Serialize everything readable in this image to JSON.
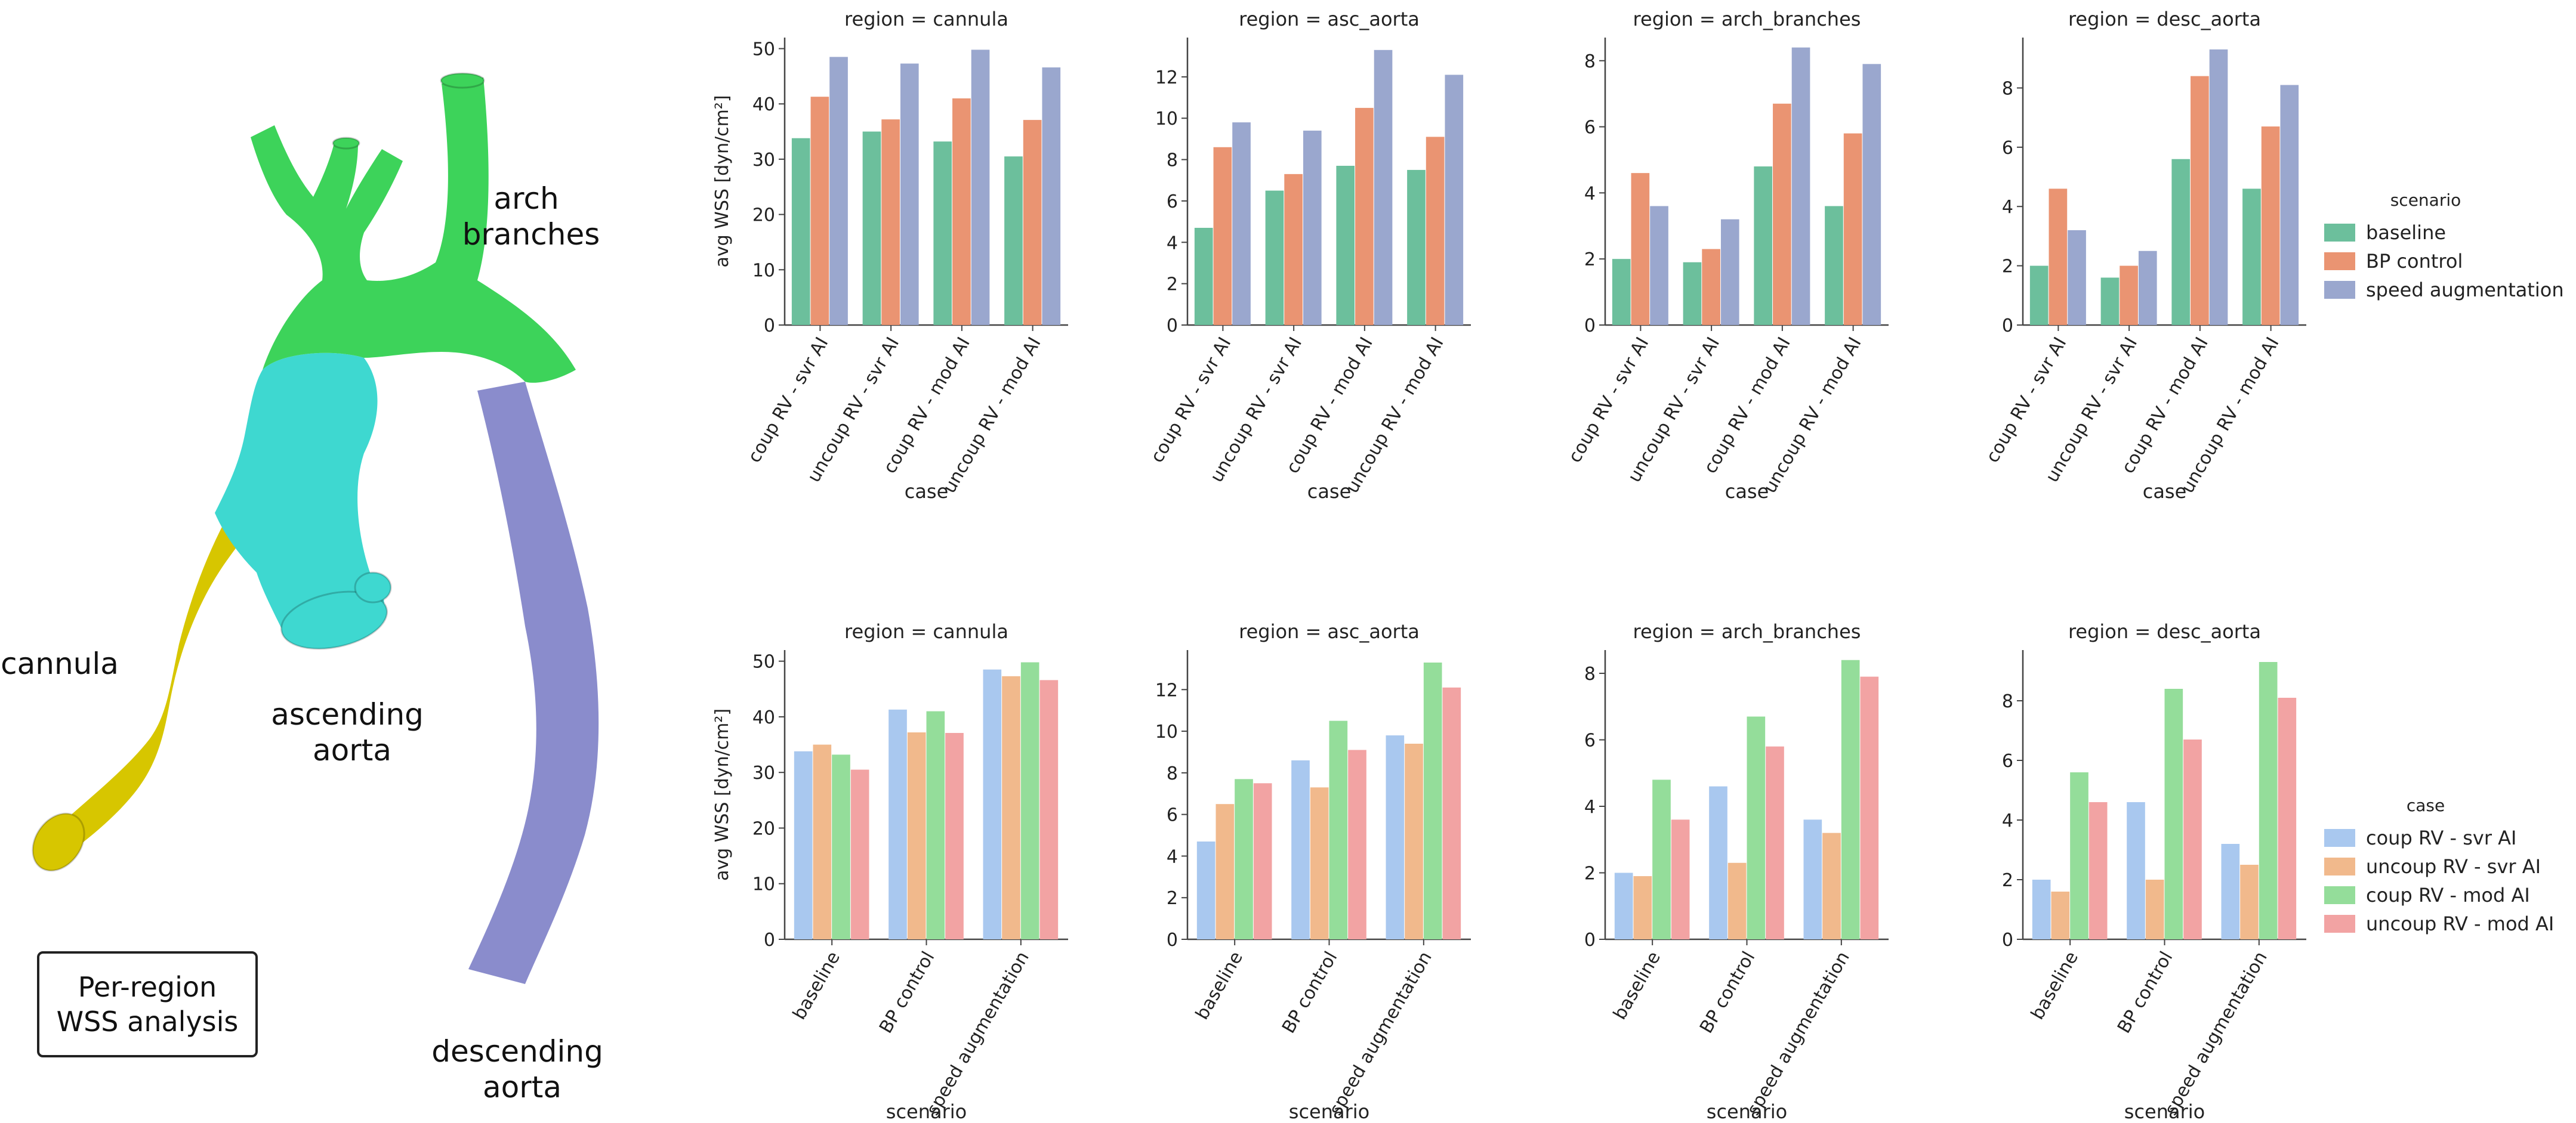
{
  "anatomy": {
    "labels": {
      "arch": [
        "arch",
        "branches"
      ],
      "cannula": "cannula",
      "ascending": [
        "ascending",
        "aorta"
      ],
      "descending": [
        "descending",
        "aorta"
      ]
    },
    "caption": [
      "Per-region",
      "WSS analysis"
    ],
    "colors": {
      "cannula": "#d7c600",
      "ascending": "#3ed8d0",
      "arch": "#3dd35a",
      "descending": "#8a8ccc"
    }
  },
  "chart_data": [
    {
      "type": "bar",
      "grid": "top",
      "title_prefix": "region = ",
      "xlabel": "case",
      "ylabel": "avg WSS [dyn/cm²]",
      "categories": [
        "coup RV - svr AI",
        "uncoup RV - svr AI",
        "coup RV - mod AI",
        "uncoup RV - mod AI"
      ],
      "legend": {
        "title": "scenario",
        "placement": "right"
      },
      "series": [
        {
          "name": "baseline",
          "color": "#6cbf9c"
        },
        {
          "name": "BP control",
          "color": "#ea9472"
        },
        {
          "name": "speed augmentation",
          "color": "#9aa7ce"
        }
      ],
      "panels": [
        {
          "region": "cannula",
          "ylim": [
            0,
            52
          ],
          "yticks": [
            0,
            10,
            20,
            30,
            40,
            50
          ],
          "values": [
            [
              33.8,
              35.0,
              33.2,
              30.5
            ],
            [
              41.3,
              37.2,
              41.0,
              37.1
            ],
            [
              48.5,
              47.3,
              49.8,
              46.6
            ]
          ]
        },
        {
          "region": "asc_aorta",
          "ylim": [
            0,
            13.9
          ],
          "yticks": [
            0,
            2,
            4,
            6,
            8,
            10,
            12
          ],
          "values": [
            [
              4.7,
              6.5,
              7.7,
              7.5
            ],
            [
              8.6,
              7.3,
              10.5,
              9.1
            ],
            [
              9.8,
              9.4,
              13.3,
              12.1
            ]
          ]
        },
        {
          "region": "arch_branches",
          "ylim": [
            0,
            8.7
          ],
          "yticks": [
            0,
            2,
            4,
            6,
            8
          ],
          "values": [
            [
              2.0,
              1.9,
              4.8,
              3.6
            ],
            [
              4.6,
              2.3,
              6.7,
              5.8
            ],
            [
              3.6,
              3.2,
              8.4,
              7.9
            ]
          ]
        },
        {
          "region": "desc_aorta",
          "ylim": [
            0,
            9.7
          ],
          "yticks": [
            0,
            2,
            4,
            6,
            8
          ],
          "values": [
            [
              2.0,
              1.6,
              5.6,
              4.6
            ],
            [
              4.6,
              2.0,
              8.4,
              6.7
            ],
            [
              3.2,
              2.5,
              9.3,
              8.1
            ]
          ]
        }
      ]
    },
    {
      "type": "bar",
      "grid": "bottom",
      "title_prefix": "region = ",
      "xlabel": "scenario",
      "ylabel": "avg WSS [dyn/cm²]",
      "categories": [
        "baseline",
        "BP control",
        "speed augmentation"
      ],
      "legend": {
        "title": "case",
        "placement": "right"
      },
      "series": [
        {
          "name": "coup RV - svr AI",
          "color": "#a9c8ef"
        },
        {
          "name": "uncoup RV - svr AI",
          "color": "#f1b98c"
        },
        {
          "name": "coup RV - mod AI",
          "color": "#94dd9a"
        },
        {
          "name": "uncoup RV - mod AI",
          "color": "#f2a3a3"
        }
      ],
      "panels": [
        {
          "region": "cannula",
          "ylim": [
            0,
            52
          ],
          "yticks": [
            0,
            10,
            20,
            30,
            40,
            50
          ],
          "values": [
            [
              33.8,
              41.3,
              48.5
            ],
            [
              35.0,
              37.2,
              47.3
            ],
            [
              33.2,
              41.0,
              49.8
            ],
            [
              30.5,
              37.1,
              46.6
            ]
          ]
        },
        {
          "region": "asc_aorta",
          "ylim": [
            0,
            13.9
          ],
          "yticks": [
            0,
            2,
            4,
            6,
            8,
            10,
            12
          ],
          "values": [
            [
              4.7,
              8.6,
              9.8
            ],
            [
              6.5,
              7.3,
              9.4
            ],
            [
              7.7,
              10.5,
              13.3
            ],
            [
              7.5,
              9.1,
              12.1
            ]
          ]
        },
        {
          "region": "arch_branches",
          "ylim": [
            0,
            8.7
          ],
          "yticks": [
            0,
            2,
            4,
            6,
            8
          ],
          "values": [
            [
              2.0,
              4.6,
              3.6
            ],
            [
              1.9,
              2.3,
              3.2
            ],
            [
              4.8,
              6.7,
              8.4
            ],
            [
              3.6,
              5.8,
              7.9
            ]
          ]
        },
        {
          "region": "desc_aorta",
          "ylim": [
            0,
            9.7
          ],
          "yticks": [
            0,
            2,
            4,
            6,
            8
          ],
          "values": [
            [
              2.0,
              4.6,
              3.2
            ],
            [
              1.6,
              2.0,
              2.5
            ],
            [
              5.6,
              8.4,
              9.3
            ],
            [
              4.6,
              6.7,
              8.1
            ]
          ]
        }
      ]
    }
  ]
}
